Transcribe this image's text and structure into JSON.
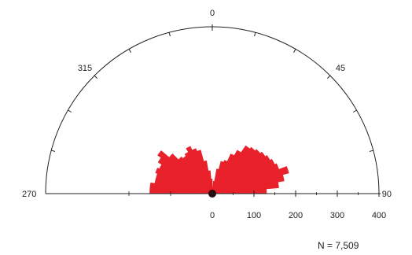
{
  "chart_data": {
    "type": "rose",
    "subtype": "half-rose histogram (azimuth 270–90 through 0)",
    "bin_width_deg": 5,
    "bin_centers_deg": [
      272.5,
      277.5,
      282.5,
      287.5,
      292.5,
      297.5,
      302.5,
      307.5,
      312.5,
      317.5,
      322.5,
      327.5,
      332.5,
      337.5,
      342.5,
      347.5,
      352.5,
      357.5,
      2.5,
      7.5,
      12.5,
      17.5,
      22.5,
      27.5,
      32.5,
      37.5,
      42.5,
      47.5,
      52.5,
      57.5,
      62.5,
      67.5,
      72.5,
      77.5,
      82.5,
      87.5
    ],
    "values": [
      150,
      150,
      140,
      140,
      145,
      140,
      150,
      160,
      135,
      115,
      110,
      115,
      125,
      115,
      108,
      80,
      55,
      35,
      15,
      30,
      60,
      80,
      85,
      105,
      120,
      140,
      145,
      150,
      155,
      160,
      165,
      170,
      190,
      175,
      160,
      130
    ],
    "radial_axis": {
      "min": 0,
      "max": 400,
      "ticks": [
        0,
        100,
        200,
        300,
        400
      ]
    },
    "angle_labels": [
      "0",
      "45",
      "90",
      "270",
      "315"
    ],
    "fill_color": "#e8212b",
    "outline_color": "#222222",
    "annotation": "N = 7,509"
  }
}
